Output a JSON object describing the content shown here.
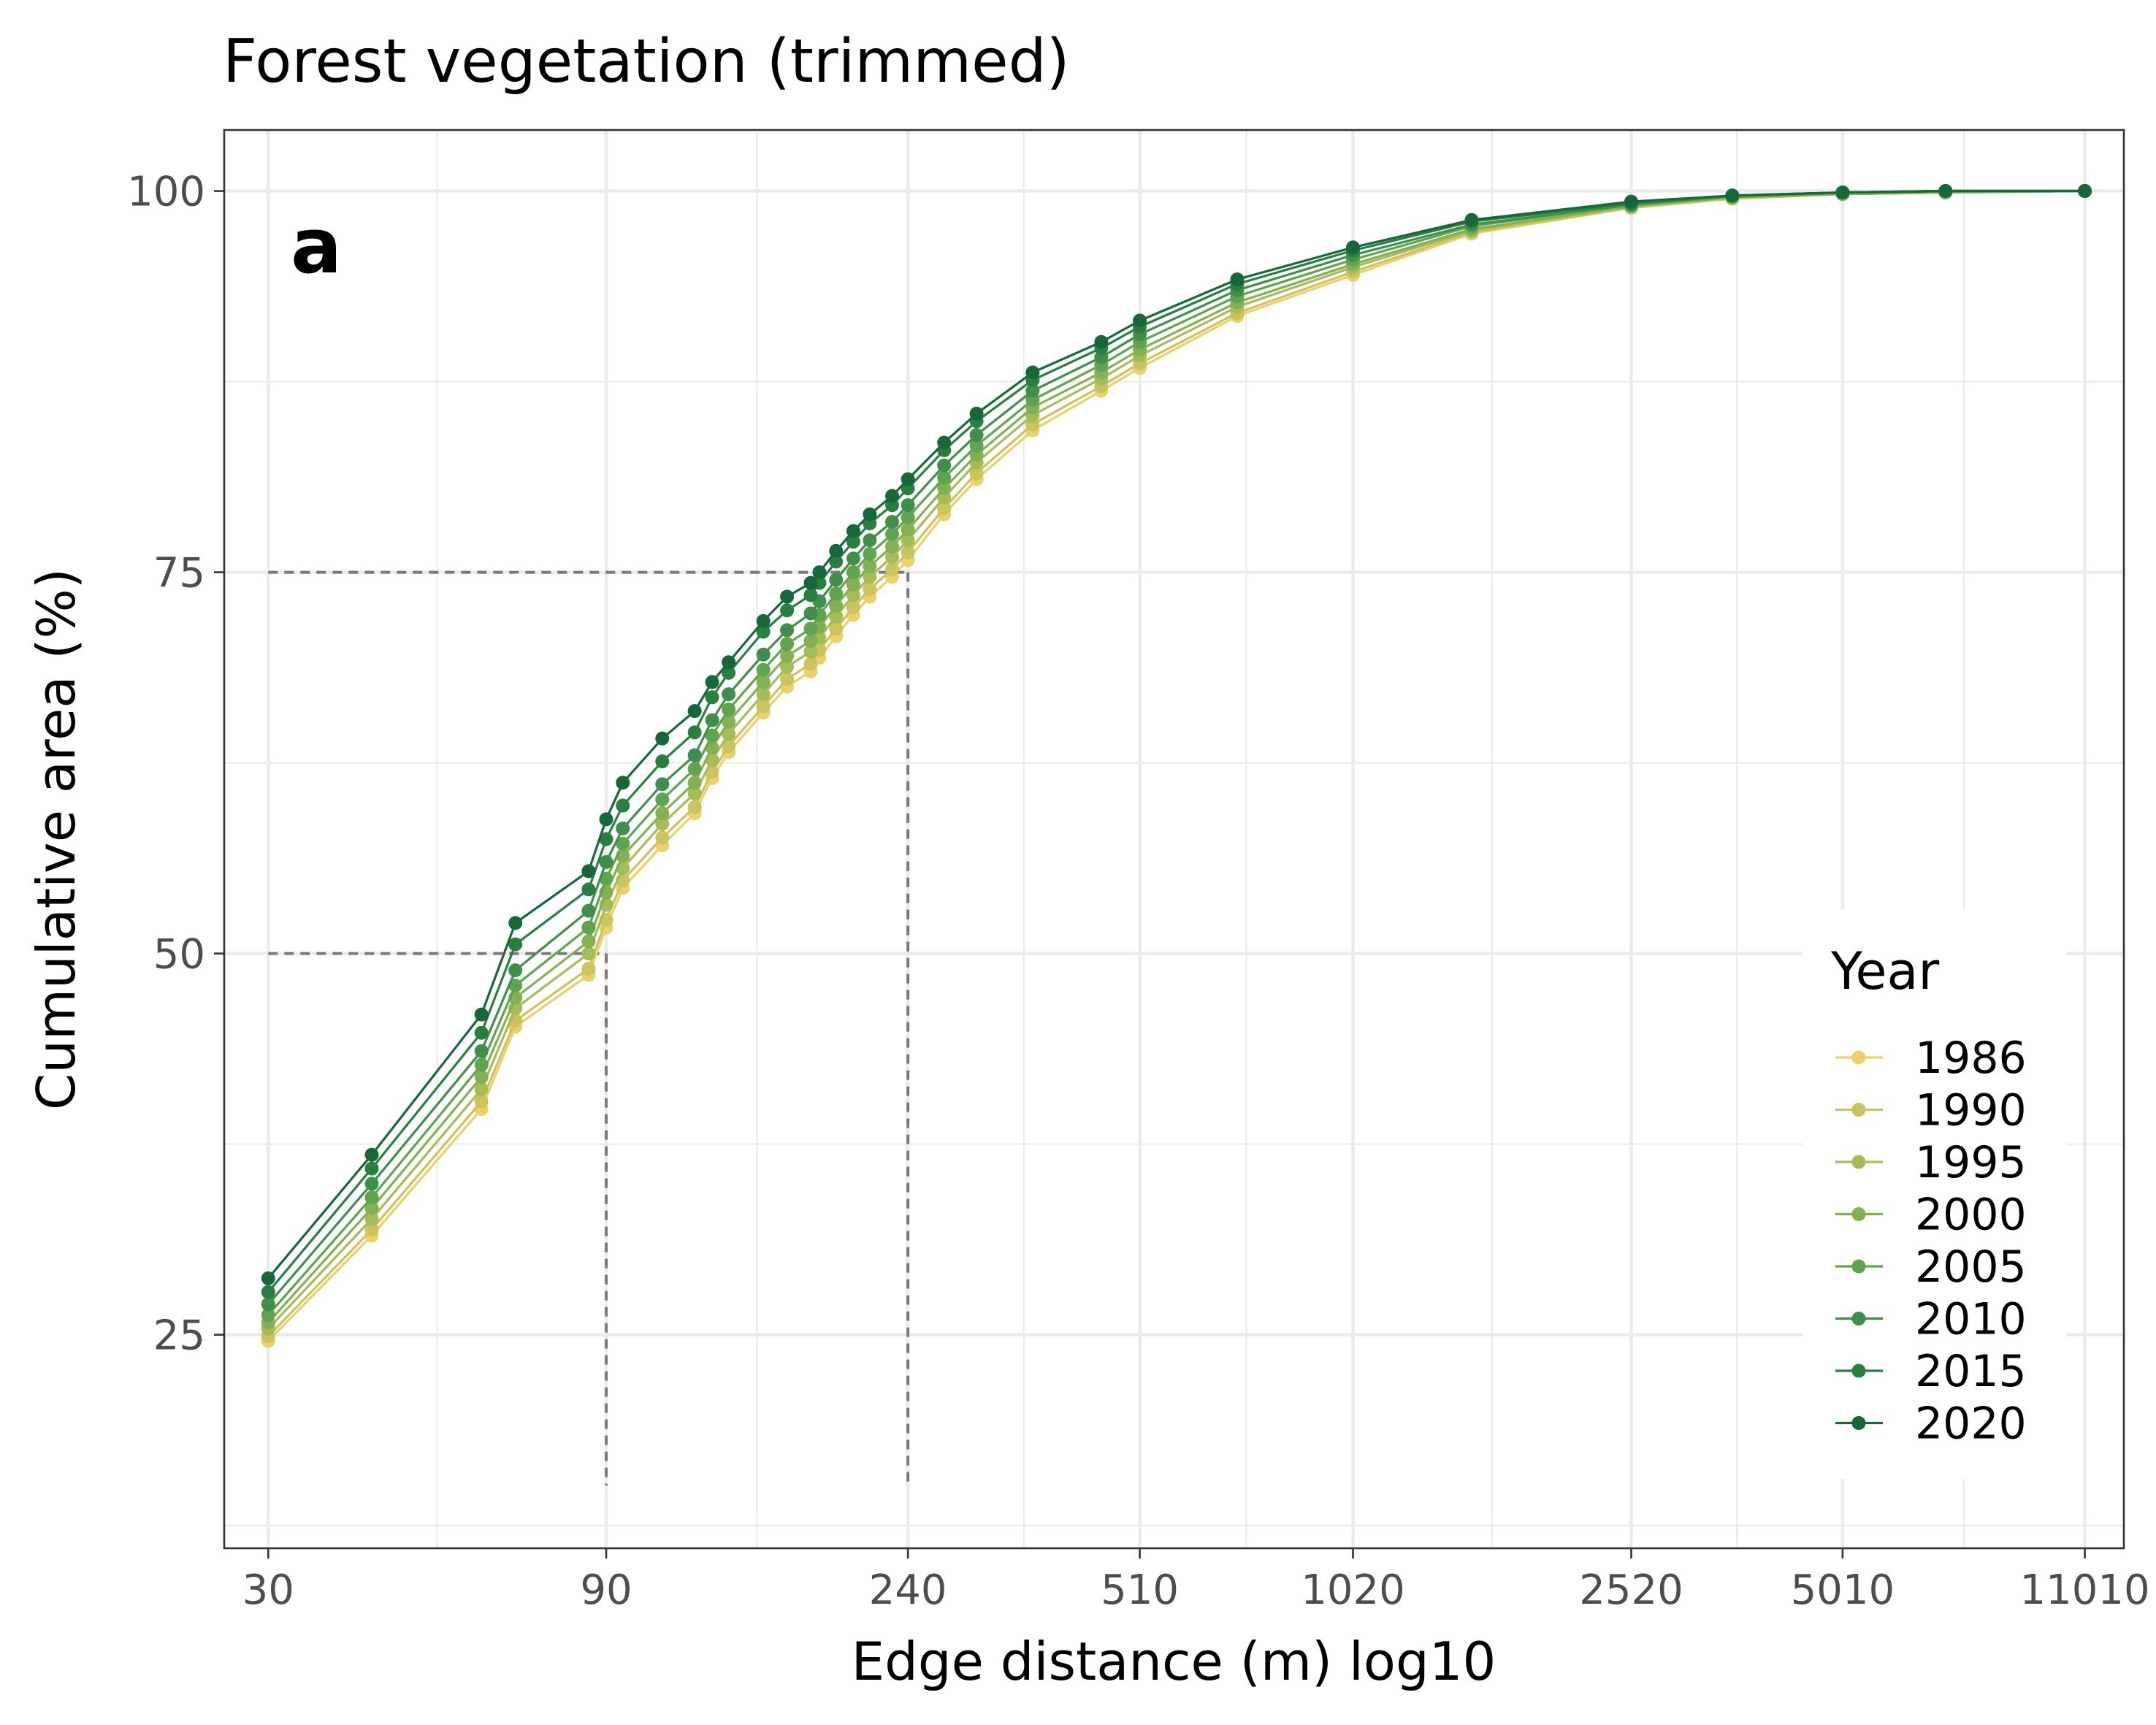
{
  "chart_data": {
    "type": "line",
    "title": "Forest vegetation (trimmed)",
    "panel_tag": "a",
    "xlabel": "Edge distance (m) log10",
    "ylabel": "Cumulative area (%)",
    "x_scale": "log10",
    "x_ticks": [
      30,
      90,
      240,
      510,
      1020,
      2520,
      5010,
      11010
    ],
    "y_ticks": [
      25,
      50,
      75,
      100
    ],
    "xlim": [
      26,
      12500
    ],
    "ylim": [
      11,
      104
    ],
    "grid": true,
    "legend": {
      "title": "Year",
      "position": "right-inside-bottom"
    },
    "reference_lines": [
      {
        "y": 50,
        "x": 90
      },
      {
        "y": 75,
        "x": 240
      }
    ],
    "x": [
      30,
      42,
      60,
      67,
      85,
      90,
      95,
      108,
      120,
      127,
      134,
      150,
      162,
      175,
      180,
      190,
      201,
      212,
      228,
      240,
      270,
      300,
      360,
      450,
      510,
      700,
      1020,
      1500,
      2520,
      3500,
      5010,
      7000,
      11010
    ],
    "series": [
      {
        "name": "1986",
        "color": "#ecd06b",
        "values": [
          24.6,
          31.5,
          39.8,
          45.2,
          48.6,
          51.7,
          54.3,
          57.1,
          59.2,
          61.5,
          63.2,
          65.8,
          67.5,
          68.5,
          69.4,
          70.8,
          72.2,
          73.4,
          74.7,
          75.8,
          78.8,
          81.1,
          84.3,
          86.9,
          88.4,
          91.8,
          94.5,
          97.2,
          98.9,
          99.5,
          99.8,
          99.9,
          100
        ]
      },
      {
        "name": "1990",
        "color": "#c9c45e",
        "values": [
          24.9,
          31.9,
          40.3,
          45.6,
          49.0,
          52.2,
          54.8,
          57.6,
          59.6,
          61.9,
          63.6,
          66.2,
          68.0,
          69.0,
          69.9,
          71.3,
          72.7,
          73.9,
          75.2,
          76.3,
          79.2,
          81.5,
          84.7,
          87.2,
          88.7,
          92.0,
          94.7,
          97.3,
          98.9,
          99.5,
          99.8,
          99.9,
          100
        ]
      },
      {
        "name": "1995",
        "color": "#a4bd57",
        "values": [
          25.4,
          32.6,
          41.1,
          46.4,
          50.0,
          53.2,
          55.6,
          58.5,
          60.5,
          62.7,
          64.4,
          67.0,
          68.8,
          69.8,
          70.7,
          72.1,
          73.5,
          74.7,
          76.0,
          77.1,
          79.9,
          82.2,
          85.3,
          87.7,
          89.2,
          92.4,
          95.0,
          97.4,
          99.0,
          99.6,
          99.8,
          99.9,
          100
        ]
      },
      {
        "name": "2000",
        "color": "#82b052",
        "values": [
          25.8,
          33.3,
          41.9,
          47.1,
          50.8,
          54.0,
          56.4,
          59.2,
          61.2,
          63.5,
          65.2,
          67.8,
          69.5,
          70.5,
          71.4,
          72.8,
          74.2,
          75.4,
          76.7,
          77.8,
          80.5,
          82.7,
          85.8,
          88.1,
          89.6,
          92.7,
          95.2,
          97.5,
          99.0,
          99.6,
          99.8,
          99.9,
          100
        ]
      },
      {
        "name": "2005",
        "color": "#5fa44f",
        "values": [
          26.3,
          34.0,
          42.7,
          47.9,
          51.7,
          54.9,
          57.2,
          60.1,
          62.1,
          64.3,
          66.0,
          68.6,
          70.3,
          71.3,
          72.2,
          73.6,
          75.0,
          76.2,
          77.5,
          78.6,
          81.2,
          83.3,
          86.3,
          88.6,
          90.1,
          93.1,
          95.5,
          97.7,
          99.1,
          99.6,
          99.9,
          100,
          100
        ]
      },
      {
        "name": "2010",
        "color": "#3f8f4a",
        "values": [
          27.0,
          34.9,
          43.6,
          48.9,
          52.8,
          56.0,
          58.2,
          61.1,
          63.0,
          65.3,
          67.0,
          69.6,
          71.2,
          72.3,
          73.1,
          74.5,
          75.9,
          77.1,
          78.3,
          79.4,
          82.0,
          84.0,
          86.9,
          89.1,
          90.6,
          93.5,
          95.8,
          97.8,
          99.1,
          99.7,
          99.9,
          100,
          100
        ]
      },
      {
        "name": "2015",
        "color": "#27803f",
        "values": [
          27.8,
          35.9,
          44.8,
          50.6,
          54.2,
          57.5,
          59.7,
          62.6,
          64.5,
          66.8,
          68.4,
          71.1,
          72.5,
          73.5,
          74.3,
          75.7,
          77.0,
          78.2,
          79.4,
          80.5,
          83.0,
          84.9,
          87.6,
          89.7,
          91.1,
          93.9,
          96.1,
          98.0,
          99.2,
          99.7,
          99.9,
          100,
          100
        ]
      },
      {
        "name": "2020",
        "color": "#16683a",
        "values": [
          28.7,
          36.8,
          46.0,
          52.0,
          55.4,
          58.8,
          61.2,
          64.1,
          65.9,
          67.8,
          69.1,
          71.8,
          73.4,
          74.3,
          75.0,
          76.4,
          77.7,
          78.8,
          80.0,
          81.1,
          83.5,
          85.4,
          88.1,
          90.1,
          91.5,
          94.2,
          96.3,
          98.1,
          99.3,
          99.7,
          99.9,
          100,
          100
        ]
      }
    ]
  }
}
